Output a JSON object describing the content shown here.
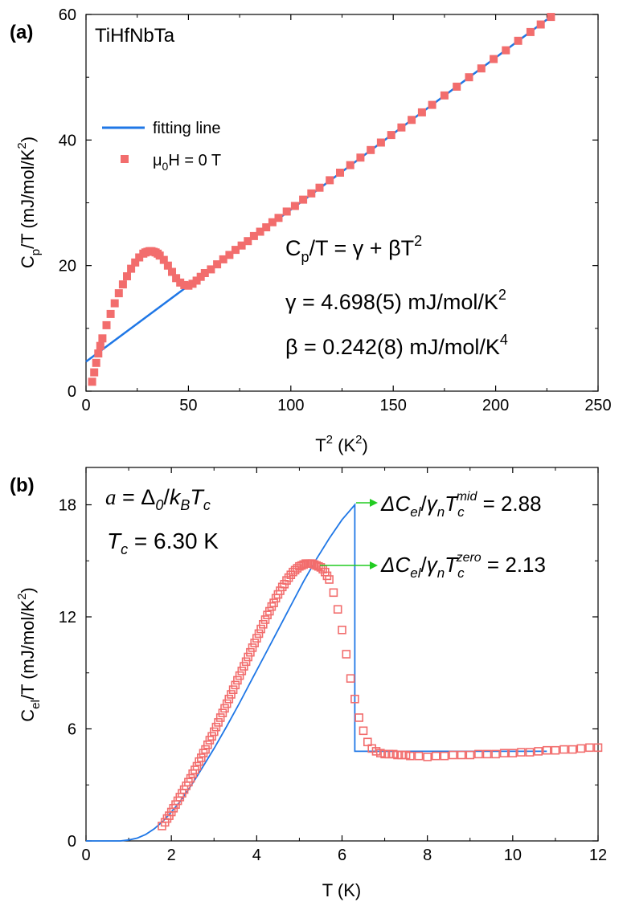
{
  "chart_data": [
    {
      "type": "scatter",
      "panel_label": "(a)",
      "sample": "TiHfNbTa",
      "xlabel": "T",
      "xlabel_sup": "2",
      "xlabel_unit": " (K",
      "xlabel_unit_sup": "2",
      "xlabel_close": ")",
      "ylabel": "C",
      "ylabel_sub": "p",
      "ylabel_rest": "/T (mJ/mol/K",
      "ylabel_sup": "2",
      "ylabel_close": ")",
      "xlim": [
        0,
        250
      ],
      "ylim": [
        0,
        60
      ],
      "xticks": [
        "0",
        "50",
        "100",
        "150",
        "200",
        "250"
      ],
      "yticks": [
        "0",
        "20",
        "40",
        "60"
      ],
      "legend": {
        "placement": "upper-left",
        "line_label": "fitting line",
        "marker_mu": "μ",
        "marker_sub": "0",
        "marker_rest": "H = 0 T"
      },
      "equations": {
        "eq1_main": "C",
        "eq1_sub": "p",
        "eq1_rest": "/T = γ + βT",
        "eq1_sup": "2",
        "eq2_main": "γ = 4.698(5) mJ/mol/K",
        "eq2_sup": "2",
        "eq3_main": "β = 0.242(8) mJ/mol/K",
        "eq3_sup": "4"
      },
      "series": [
        {
          "kind": "line",
          "color": "#1f77e6",
          "x": [
            0,
            228
          ],
          "y": [
            4.698,
            59.9
          ]
        },
        {
          "kind": "markers",
          "color": "#f26d6d",
          "x": [
            3,
            4,
            5,
            6,
            7,
            8,
            10,
            12,
            14,
            16,
            18,
            20,
            22,
            24,
            26,
            28,
            29,
            30,
            31,
            32,
            33,
            34,
            35,
            36,
            38,
            40,
            42,
            44,
            46,
            48,
            50,
            52,
            54,
            56,
            58,
            61,
            64,
            67,
            70,
            73,
            76,
            79,
            82,
            85,
            88,
            91,
            94,
            98,
            102,
            106,
            110,
            114,
            119,
            124,
            129,
            134,
            139,
            144,
            149,
            154,
            159,
            164,
            169,
            175,
            181,
            187,
            193,
            199,
            205,
            211,
            217,
            222,
            227
          ],
          "y": [
            1.5,
            3.0,
            4.5,
            6.0,
            7.2,
            8.4,
            10.5,
            12.3,
            14.0,
            15.6,
            17.0,
            18.3,
            19.5,
            20.5,
            21.3,
            21.9,
            22.1,
            22.2,
            22.3,
            22.3,
            22.2,
            22.1,
            21.9,
            21.6,
            20.9,
            20.0,
            19.0,
            18.0,
            17.3,
            16.9,
            16.8,
            17.1,
            17.6,
            18.2,
            18.8,
            19.4,
            20.2,
            21.0,
            21.7,
            22.5,
            23.2,
            23.9,
            24.7,
            25.4,
            26.1,
            26.9,
            27.6,
            28.6,
            29.5,
            30.5,
            31.5,
            32.4,
            33.6,
            34.8,
            36.0,
            37.2,
            38.4,
            39.6,
            40.8,
            42.0,
            43.2,
            44.4,
            45.6,
            47.1,
            48.5,
            50.0,
            51.4,
            52.9,
            54.3,
            55.8,
            57.2,
            58.4,
            59.6
          ]
        }
      ]
    },
    {
      "type": "scatter",
      "panel_label": "(b)",
      "xlabel": "T (K)",
      "ylabel": "C",
      "ylabel_sub": "el",
      "ylabel_rest": "/T (mJ/mol/K",
      "ylabel_sup": "2",
      "ylabel_close": ")",
      "xlim": [
        0,
        12
      ],
      "ylim": [
        0,
        20
      ],
      "xticks": [
        "0",
        "2",
        "4",
        "6",
        "8",
        "10",
        "12"
      ],
      "yticks": [
        "0",
        "6",
        "12",
        "18"
      ],
      "annotations": {
        "alpha_a": "a",
        "alpha_eq": " = Δ",
        "alpha_sub0": "0",
        "alpha_slash": "/",
        "alpha_k": "k",
        "alpha_subB": "B",
        "alpha_T": "T",
        "alpha_subc": "c",
        "tc_T": "T",
        "tc_sub": "c",
        "tc_rest": " = 6.30 K",
        "mid_d": "ΔC",
        "mid_sub_el": "el",
        "mid_slash": "/",
        "mid_gamma": "γ",
        "mid_sub_n": "n",
        "mid_T": "T",
        "mid_sub_c": "c",
        "mid_sup": "mid",
        "mid_val": " = 2.88",
        "zero_d": "ΔC",
        "zero_sub_el": "el",
        "zero_slash": "/",
        "zero_gamma": "γ",
        "zero_sub_n": "n",
        "zero_T": "T",
        "zero_sub_c": "c",
        "zero_sup": "zero",
        "zero_val": " = 2.13"
      },
      "arrow_color": "#22cc22",
      "series": [
        {
          "kind": "line",
          "color": "#1f77e6",
          "x": [
            0,
            0.8,
            1.0,
            1.2,
            1.4,
            1.6,
            1.8,
            2.0,
            2.2,
            2.4,
            2.6,
            2.8,
            3.0,
            3.3,
            3.6,
            3.9,
            4.2,
            4.5,
            4.8,
            5.1,
            5.4,
            5.7,
            6.0,
            6.3,
            6.3,
            7.0,
            8.0,
            9.0,
            10.0,
            10.8
          ],
          "y": [
            0,
            0,
            0.05,
            0.15,
            0.35,
            0.65,
            1.05,
            1.55,
            2.1,
            2.75,
            3.45,
            4.2,
            4.95,
            6.15,
            7.4,
            8.7,
            10.0,
            11.3,
            12.6,
            13.9,
            15.1,
            16.2,
            17.2,
            18.0,
            4.8,
            4.8,
            4.8,
            4.8,
            4.8,
            4.8
          ]
        },
        {
          "kind": "open-markers",
          "color": "#f26d6d",
          "x": [
            1.78,
            1.85,
            1.9,
            1.95,
            2.0,
            2.05,
            2.1,
            2.15,
            2.2,
            2.25,
            2.3,
            2.35,
            2.4,
            2.45,
            2.5,
            2.55,
            2.6,
            2.65,
            2.7,
            2.75,
            2.8,
            2.85,
            2.9,
            2.95,
            3.0,
            3.05,
            3.1,
            3.15,
            3.2,
            3.25,
            3.3,
            3.35,
            3.4,
            3.45,
            3.5,
            3.55,
            3.6,
            3.65,
            3.7,
            3.75,
            3.8,
            3.85,
            3.9,
            3.95,
            4.0,
            4.05,
            4.1,
            4.15,
            4.2,
            4.25,
            4.3,
            4.35,
            4.4,
            4.45,
            4.5,
            4.55,
            4.6,
            4.65,
            4.7,
            4.75,
            4.8,
            4.85,
            4.9,
            4.95,
            5.0,
            5.05,
            5.1,
            5.15,
            5.2,
            5.25,
            5.3,
            5.35,
            5.4,
            5.45,
            5.5,
            5.55,
            5.6,
            5.65,
            5.7,
            5.8,
            5.9,
            6.0,
            6.1,
            6.2,
            6.3,
            6.4,
            6.5,
            6.6,
            6.7,
            6.8,
            6.9,
            7.0,
            7.1,
            7.2,
            7.3,
            7.4,
            7.5,
            7.6,
            7.8,
            8.0,
            8.2,
            8.4,
            8.6,
            8.8,
            9.0,
            9.2,
            9.4,
            9.6,
            9.8,
            10.0,
            10.2,
            10.4,
            10.6,
            10.8,
            11.0,
            11.2,
            11.4,
            11.6,
            11.8,
            12.0
          ],
          "y": [
            0.8,
            1.0,
            1.2,
            1.35,
            1.55,
            1.75,
            1.95,
            2.15,
            2.35,
            2.55,
            2.75,
            2.95,
            3.15,
            3.35,
            3.6,
            3.8,
            4.0,
            4.25,
            4.45,
            4.7,
            4.9,
            5.15,
            5.4,
            5.6,
            5.85,
            6.1,
            6.35,
            6.6,
            6.85,
            7.1,
            7.35,
            7.6,
            7.85,
            8.1,
            8.35,
            8.6,
            8.85,
            9.1,
            9.35,
            9.6,
            9.85,
            10.1,
            10.35,
            10.6,
            10.85,
            11.1,
            11.35,
            11.6,
            11.85,
            12.1,
            12.3,
            12.55,
            12.75,
            13.0,
            13.2,
            13.4,
            13.6,
            13.75,
            13.95,
            14.1,
            14.25,
            14.4,
            14.5,
            14.6,
            14.7,
            14.75,
            14.8,
            14.85,
            14.85,
            14.85,
            14.85,
            14.8,
            14.75,
            14.7,
            14.65,
            14.55,
            14.4,
            14.2,
            14.0,
            13.3,
            12.4,
            11.3,
            10.0,
            8.7,
            7.6,
            6.6,
            5.9,
            5.3,
            4.95,
            4.8,
            4.7,
            4.65,
            4.65,
            4.65,
            4.6,
            4.6,
            4.6,
            4.55,
            4.55,
            4.5,
            4.55,
            4.55,
            4.6,
            4.6,
            4.6,
            4.65,
            4.65,
            4.65,
            4.7,
            4.7,
            4.75,
            4.75,
            4.8,
            4.85,
            4.85,
            4.9,
            4.9,
            4.95,
            5.0,
            5.0
          ]
        }
      ]
    }
  ]
}
